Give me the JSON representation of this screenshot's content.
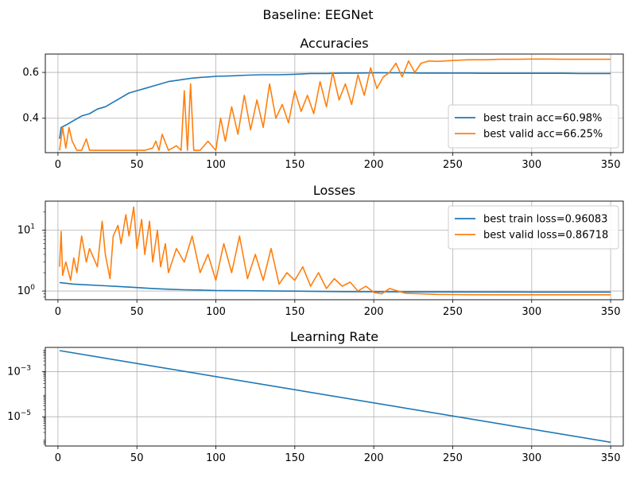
{
  "suptitle": "Baseline: EEGNet",
  "colors": {
    "train": "#1f77b4",
    "valid": "#ff7f0e",
    "grid": "#b0b0b0",
    "legend_border": "#cccccc"
  },
  "chart_data": [
    {
      "type": "line",
      "title": "Accuracies",
      "xlim": [
        -8,
        358
      ],
      "ylim": [
        0.25,
        0.68
      ],
      "yscale": "linear",
      "xticks": [
        0,
        50,
        100,
        150,
        200,
        250,
        300,
        350
      ],
      "yticks": [
        {
          "v": 0.4,
          "label": "0.4"
        },
        {
          "v": 0.6,
          "label": "0.6"
        }
      ],
      "grid": true,
      "legend_position": "lower-right",
      "series": [
        {
          "name": "best train acc=60.98%",
          "color": "#1f77b4",
          "x": [
            1,
            2,
            5,
            10,
            15,
            20,
            25,
            30,
            35,
            40,
            45,
            50,
            55,
            60,
            65,
            70,
            75,
            80,
            85,
            90,
            95,
            100,
            110,
            120,
            130,
            140,
            150,
            160,
            170,
            180,
            190,
            200,
            210,
            220,
            230,
            240,
            250,
            260,
            270,
            280,
            290,
            300,
            310,
            320,
            330,
            340,
            350
          ],
          "y": [
            0.31,
            0.36,
            0.37,
            0.39,
            0.41,
            0.42,
            0.44,
            0.45,
            0.47,
            0.49,
            0.51,
            0.52,
            0.53,
            0.54,
            0.55,
            0.56,
            0.565,
            0.57,
            0.575,
            0.578,
            0.58,
            0.583,
            0.585,
            0.588,
            0.59,
            0.59,
            0.592,
            0.595,
            0.595,
            0.597,
            0.597,
            0.598,
            0.598,
            0.598,
            0.597,
            0.597,
            0.597,
            0.597,
            0.596,
            0.596,
            0.596,
            0.596,
            0.596,
            0.596,
            0.595,
            0.595,
            0.595
          ]
        },
        {
          "name": "best valid acc=66.25%",
          "color": "#ff7f0e",
          "x": [
            1,
            3,
            5,
            7,
            9,
            12,
            15,
            18,
            20,
            25,
            30,
            35,
            40,
            45,
            50,
            55,
            60,
            62,
            64,
            66,
            70,
            75,
            78,
            80,
            82,
            84,
            86,
            90,
            95,
            100,
            103,
            106,
            110,
            114,
            118,
            122,
            126,
            130,
            134,
            138,
            142,
            146,
            150,
            154,
            158,
            162,
            166,
            170,
            174,
            178,
            182,
            186,
            190,
            194,
            198,
            202,
            206,
            210,
            214,
            218,
            222,
            226,
            230,
            235,
            240,
            245,
            250,
            260,
            270,
            280,
            290,
            300,
            310,
            320,
            330,
            340,
            350
          ],
          "y": [
            0.26,
            0.36,
            0.27,
            0.36,
            0.3,
            0.26,
            0.26,
            0.31,
            0.26,
            0.26,
            0.26,
            0.26,
            0.26,
            0.26,
            0.26,
            0.26,
            0.27,
            0.3,
            0.26,
            0.33,
            0.26,
            0.28,
            0.26,
            0.52,
            0.26,
            0.55,
            0.26,
            0.26,
            0.3,
            0.26,
            0.4,
            0.3,
            0.45,
            0.33,
            0.5,
            0.35,
            0.48,
            0.36,
            0.55,
            0.4,
            0.46,
            0.38,
            0.52,
            0.43,
            0.5,
            0.42,
            0.56,
            0.45,
            0.6,
            0.48,
            0.55,
            0.46,
            0.59,
            0.5,
            0.62,
            0.53,
            0.58,
            0.6,
            0.64,
            0.58,
            0.65,
            0.6,
            0.64,
            0.65,
            0.648,
            0.65,
            0.652,
            0.655,
            0.655,
            0.657,
            0.657,
            0.658,
            0.658,
            0.657,
            0.657,
            0.657,
            0.657
          ]
        }
      ]
    },
    {
      "type": "line",
      "title": "Losses",
      "xlim": [
        -8,
        358
      ],
      "ylim": [
        0.72,
        30
      ],
      "yscale": "log",
      "xticks": [
        0,
        50,
        100,
        150,
        200,
        250,
        300,
        350
      ],
      "yticks": [
        {
          "v": 1,
          "label": "10",
          "sup": "0"
        },
        {
          "v": 10,
          "label": "10",
          "sup": "1"
        }
      ],
      "grid": true,
      "legend_position": "upper-right",
      "series": [
        {
          "name": "best train loss=0.96083",
          "color": "#1f77b4",
          "x": [
            1,
            10,
            20,
            30,
            40,
            50,
            60,
            70,
            80,
            90,
            100,
            120,
            140,
            160,
            180,
            200,
            220,
            240,
            260,
            280,
            300,
            320,
            340,
            350
          ],
          "y": [
            1.38,
            1.3,
            1.26,
            1.22,
            1.18,
            1.14,
            1.1,
            1.07,
            1.05,
            1.04,
            1.02,
            1.01,
            1.0,
            0.99,
            0.98,
            0.975,
            0.97,
            0.966,
            0.964,
            0.963,
            0.962,
            0.961,
            0.961,
            0.961
          ]
        },
        {
          "name": "best valid loss=0.86718",
          "color": "#ff7f0e",
          "x": [
            1,
            2,
            3,
            5,
            8,
            10,
            12,
            15,
            18,
            20,
            25,
            28,
            30,
            33,
            35,
            38,
            40,
            43,
            45,
            48,
            50,
            53,
            55,
            58,
            60,
            63,
            65,
            68,
            70,
            75,
            80,
            85,
            90,
            95,
            100,
            105,
            110,
            115,
            120,
            125,
            130,
            135,
            140,
            145,
            150,
            155,
            160,
            165,
            170,
            175,
            180,
            185,
            190,
            195,
            200,
            205,
            210,
            220,
            230,
            240,
            250,
            260,
            280,
            300,
            320,
            340,
            350
          ],
          "y": [
            2.5,
            9.5,
            1.8,
            3.0,
            1.5,
            3.5,
            2.0,
            8.0,
            3.0,
            5.0,
            2.5,
            14.0,
            4.0,
            1.6,
            8.0,
            12.0,
            6.0,
            18.0,
            8.0,
            24.0,
            5.0,
            15.0,
            4.0,
            14.0,
            3.0,
            10.0,
            2.5,
            6.0,
            2.0,
            5.0,
            3.0,
            8.0,
            2.0,
            4.0,
            1.5,
            6.0,
            2.0,
            8.0,
            1.6,
            4.0,
            1.5,
            5.0,
            1.3,
            2.0,
            1.5,
            2.5,
            1.2,
            2.0,
            1.1,
            1.6,
            1.2,
            1.4,
            1.0,
            1.2,
            0.95,
            0.9,
            1.1,
            0.92,
            0.9,
            0.88,
            0.875,
            0.87,
            0.868,
            0.867,
            0.867,
            0.867,
            0.867
          ]
        }
      ]
    },
    {
      "type": "line",
      "title": "Learning Rate",
      "xlim": [
        -8,
        358
      ],
      "ylim": [
        5e-07,
        0.012
      ],
      "yscale": "log",
      "xticks": [
        0,
        50,
        100,
        150,
        200,
        250,
        300,
        350
      ],
      "yticks": [
        {
          "v": 1e-05,
          "label": "10",
          "sup": "−5"
        },
        {
          "v": 0.001,
          "label": "10",
          "sup": "−3"
        }
      ],
      "grid": true,
      "legend_position": "none",
      "series": [
        {
          "color": "#1f77b4",
          "x": [
            1,
            350
          ],
          "y": [
            0.0087,
            7.3e-07
          ]
        }
      ]
    }
  ]
}
